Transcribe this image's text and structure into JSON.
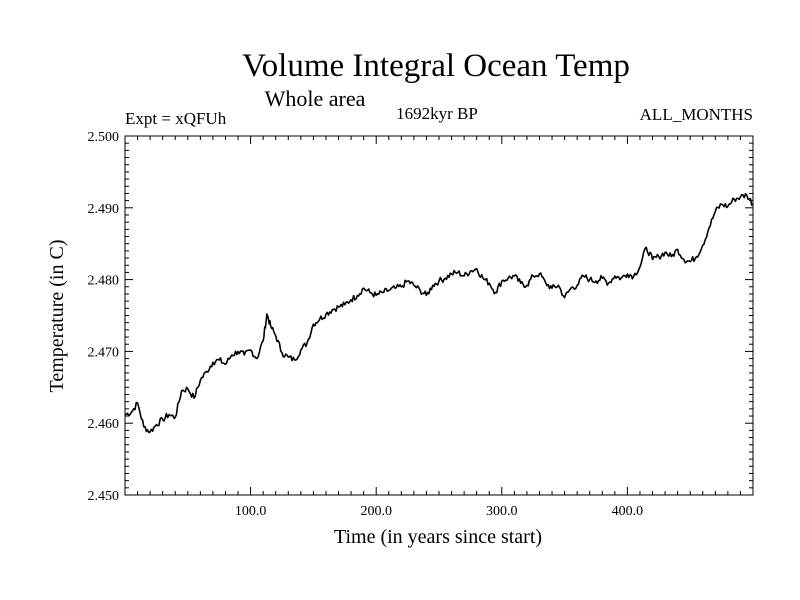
{
  "chart_data": {
    "type": "line",
    "title": "Volume Integral Ocean Temp",
    "subtitle": "Whole area",
    "annotations": {
      "left": "Expt = xQFUh",
      "center": "1692kyr BP",
      "right": "ALL_MONTHS"
    },
    "xlabel": "Time (in years since start)",
    "ylabel": "Temperature (in C)",
    "xlim": [
      0,
      500
    ],
    "ylim": [
      2.45,
      2.5
    ],
    "x_ticks": [
      100,
      200,
      300,
      400
    ],
    "x_tick_labels": [
      "100.0",
      "200.0",
      "300.0",
      "400.0"
    ],
    "y_ticks": [
      2.45,
      2.46,
      2.47,
      2.48,
      2.49,
      2.5
    ],
    "y_tick_labels": [
      "2.450",
      "2.460",
      "2.470",
      "2.480",
      "2.490",
      "2.500"
    ],
    "grid": false,
    "series": [
      {
        "name": "Volume integral ocean temperature",
        "color": "#000000",
        "x": [
          0,
          5,
          10,
          15,
          20,
          25,
          30,
          35,
          40,
          45,
          50,
          55,
          60,
          65,
          70,
          75,
          80,
          85,
          90,
          95,
          100,
          105,
          110,
          113,
          116,
          120,
          125,
          130,
          135,
          140,
          145,
          150,
          155,
          160,
          165,
          170,
          175,
          180,
          185,
          190,
          195,
          200,
          205,
          210,
          215,
          220,
          225,
          230,
          235,
          240,
          245,
          250,
          255,
          260,
          265,
          270,
          275,
          280,
          285,
          290,
          295,
          300,
          305,
          310,
          315,
          320,
          325,
          330,
          335,
          340,
          345,
          350,
          355,
          360,
          365,
          370,
          375,
          380,
          385,
          390,
          395,
          400,
          405,
          410,
          415,
          420,
          425,
          430,
          435,
          440,
          445,
          450,
          455,
          460,
          465,
          470,
          475,
          480,
          485,
          490,
          495,
          500
        ],
        "y": [
          2.4612,
          2.4615,
          2.4628,
          2.4595,
          2.4588,
          2.4598,
          2.4605,
          2.4612,
          2.4608,
          2.4645,
          2.4648,
          2.4635,
          2.466,
          2.4672,
          2.4685,
          2.4688,
          2.4682,
          2.4695,
          2.47,
          2.4695,
          2.4702,
          2.469,
          2.4715,
          2.4752,
          2.4735,
          2.4722,
          2.4698,
          2.4692,
          2.4688,
          2.4702,
          2.4712,
          2.4738,
          2.4745,
          2.4752,
          2.4758,
          2.4762,
          2.4765,
          2.4772,
          2.4778,
          2.4788,
          2.4782,
          2.4778,
          2.4782,
          2.4785,
          2.4788,
          2.479,
          2.4798,
          2.4792,
          2.4785,
          2.4778,
          2.4792,
          2.4798,
          2.4802,
          2.4808,
          2.481,
          2.4805,
          2.4812,
          2.4815,
          2.4802,
          2.4795,
          2.4782,
          2.4798,
          2.4802,
          2.4805,
          2.4795,
          2.4792,
          2.4805,
          2.4808,
          2.4795,
          2.4788,
          2.4792,
          2.4775,
          2.4788,
          2.4792,
          2.4805,
          2.48,
          2.4798,
          2.4802,
          2.4795,
          2.4805,
          2.4802,
          2.4808,
          2.4805,
          2.4818,
          2.4845,
          2.4828,
          2.4832,
          2.4838,
          2.4832,
          2.4842,
          2.4828,
          2.4825,
          2.4832,
          2.4848,
          2.4872,
          2.4895,
          2.4905,
          2.4902,
          2.4912,
          2.4915,
          2.4918,
          2.4905
        ]
      }
    ]
  }
}
